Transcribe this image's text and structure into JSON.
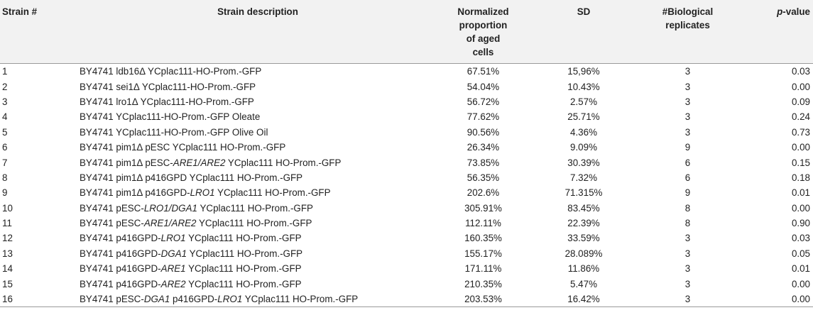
{
  "table": {
    "headers": {
      "strain": "Strain #",
      "description": "Strain description",
      "proportion_lines": [
        "Normalized proportion",
        "of aged",
        "cells"
      ],
      "sd": "SD",
      "replicates_lines": [
        "#Biological",
        "replicates"
      ],
      "pvalue_prefix": "p",
      "pvalue_suffix": "-value"
    },
    "rows": [
      {
        "num": "1",
        "desc": [
          {
            "t": "BY4741 ldb16Δ YCplac111-HO-Prom.-GFP",
            "i": false
          }
        ],
        "prop": "67.51%",
        "sd": "15,96%",
        "reps": "3",
        "p": "0.03"
      },
      {
        "num": "2",
        "desc": [
          {
            "t": "BY4741 sei1Δ YCplac111-HO-Prom.-GFP",
            "i": false
          }
        ],
        "prop": "54.04%",
        "sd": "10.43%",
        "reps": "3",
        "p": "0.00"
      },
      {
        "num": "3",
        "desc": [
          {
            "t": "BY4741 lro1Δ YCplac111-HO-Prom.-GFP",
            "i": false
          }
        ],
        "prop": "56.72%",
        "sd": "2.57%",
        "reps": "3",
        "p": "0.09"
      },
      {
        "num": "4",
        "desc": [
          {
            "t": "BY4741 YCplac111-HO-Prom.-GFP Oleate",
            "i": false
          }
        ],
        "prop": "77.62%",
        "sd": "25.71%",
        "reps": "3",
        "p": "0.24"
      },
      {
        "num": "5",
        "desc": [
          {
            "t": "BY4741 YCplac111-HO-Prom.-GFP Olive Oil",
            "i": false
          }
        ],
        "prop": "90.56%",
        "sd": "4.36%",
        "reps": "3",
        "p": "0.73"
      },
      {
        "num": "6",
        "desc": [
          {
            "t": "BY4741 pim1Δ pESC YCplac111 HO-Prom.-GFP",
            "i": false
          }
        ],
        "prop": "26.34%",
        "sd": "9.09%",
        "reps": "9",
        "p": "0.00"
      },
      {
        "num": "7",
        "desc": [
          {
            "t": "BY4741 pim1Δ pESC-",
            "i": false
          },
          {
            "t": "ARE1/ARE2",
            "i": true
          },
          {
            "t": " YCplac111 HO-Prom.-GFP",
            "i": false
          }
        ],
        "prop": "73.85%",
        "sd": "30.39%",
        "reps": "6",
        "p": "0.15"
      },
      {
        "num": "8",
        "desc": [
          {
            "t": "BY4741 pim1Δ p416GPD YCplac111 HO-Prom.-GFP",
            "i": false
          }
        ],
        "prop": "56.35%",
        "sd": "7.32%",
        "reps": "6",
        "p": "0.18"
      },
      {
        "num": "9",
        "desc": [
          {
            "t": "BY4741 pim1Δ p416GPD-",
            "i": false
          },
          {
            "t": "LRO1",
            "i": true
          },
          {
            "t": " YCplac111 HO-Prom.-GFP",
            "i": false
          }
        ],
        "prop": "202.6%",
        "sd": "71.315%",
        "reps": "9",
        "p": "0.01"
      },
      {
        "num": "10",
        "desc": [
          {
            "t": "BY4741 pESC-",
            "i": false
          },
          {
            "t": "LRO1/DGA1",
            "i": true
          },
          {
            "t": " YCplac111 HO-Prom.-GFP",
            "i": false
          }
        ],
        "prop": "305.91%",
        "sd": "83.45%",
        "reps": "8",
        "p": "0.00"
      },
      {
        "num": "11",
        "desc": [
          {
            "t": "BY4741 pESC-",
            "i": false
          },
          {
            "t": "ARE1/ARE2",
            "i": true
          },
          {
            "t": " YCplac111 HO-Prom.-GFP",
            "i": false
          }
        ],
        "prop": "112.11%",
        "sd": "22.39%",
        "reps": "8",
        "p": "0.90"
      },
      {
        "num": "12",
        "desc": [
          {
            "t": "BY4741 p416GPD-",
            "i": false
          },
          {
            "t": "LRO1",
            "i": true
          },
          {
            "t": " YCplac111 HO-Prom.-GFP",
            "i": false
          }
        ],
        "prop": "160.35%",
        "sd": "33.59%",
        "reps": "3",
        "p": "0.03"
      },
      {
        "num": "13",
        "desc": [
          {
            "t": "BY4741 p416GPD-",
            "i": false
          },
          {
            "t": "DGA1",
            "i": true
          },
          {
            "t": " YCplac111 HO-Prom.-GFP",
            "i": false
          }
        ],
        "prop": "155.17%",
        "sd": "28.089%",
        "reps": "3",
        "p": "0.05"
      },
      {
        "num": "14",
        "desc": [
          {
            "t": "BY4741 p416GPD-",
            "i": false
          },
          {
            "t": "ARE1",
            "i": true
          },
          {
            "t": " YCplac111 HO-Prom.-GFP",
            "i": false
          }
        ],
        "prop": "171.11%",
        "sd": "11.86%",
        "reps": "3",
        "p": "0.01"
      },
      {
        "num": "15",
        "desc": [
          {
            "t": "BY4741 p416GPD-",
            "i": false
          },
          {
            "t": "ARE2",
            "i": true
          },
          {
            "t": " YCplac111 HO-Prom.-GFP",
            "i": false
          }
        ],
        "prop": "210.35%",
        "sd": "5.47%",
        "reps": "3",
        "p": "0.00"
      },
      {
        "num": "16",
        "desc": [
          {
            "t": "BY4741 pESC-",
            "i": false
          },
          {
            "t": "DGA1",
            "i": true
          },
          {
            "t": " p416GPD-",
            "i": false
          },
          {
            "t": "LRO1",
            "i": true
          },
          {
            "t": " YCplac111 HO-Prom.-GFP",
            "i": false
          }
        ],
        "prop": "203.53%",
        "sd": "16.42%",
        "reps": "3",
        "p": "0.00"
      }
    ]
  }
}
